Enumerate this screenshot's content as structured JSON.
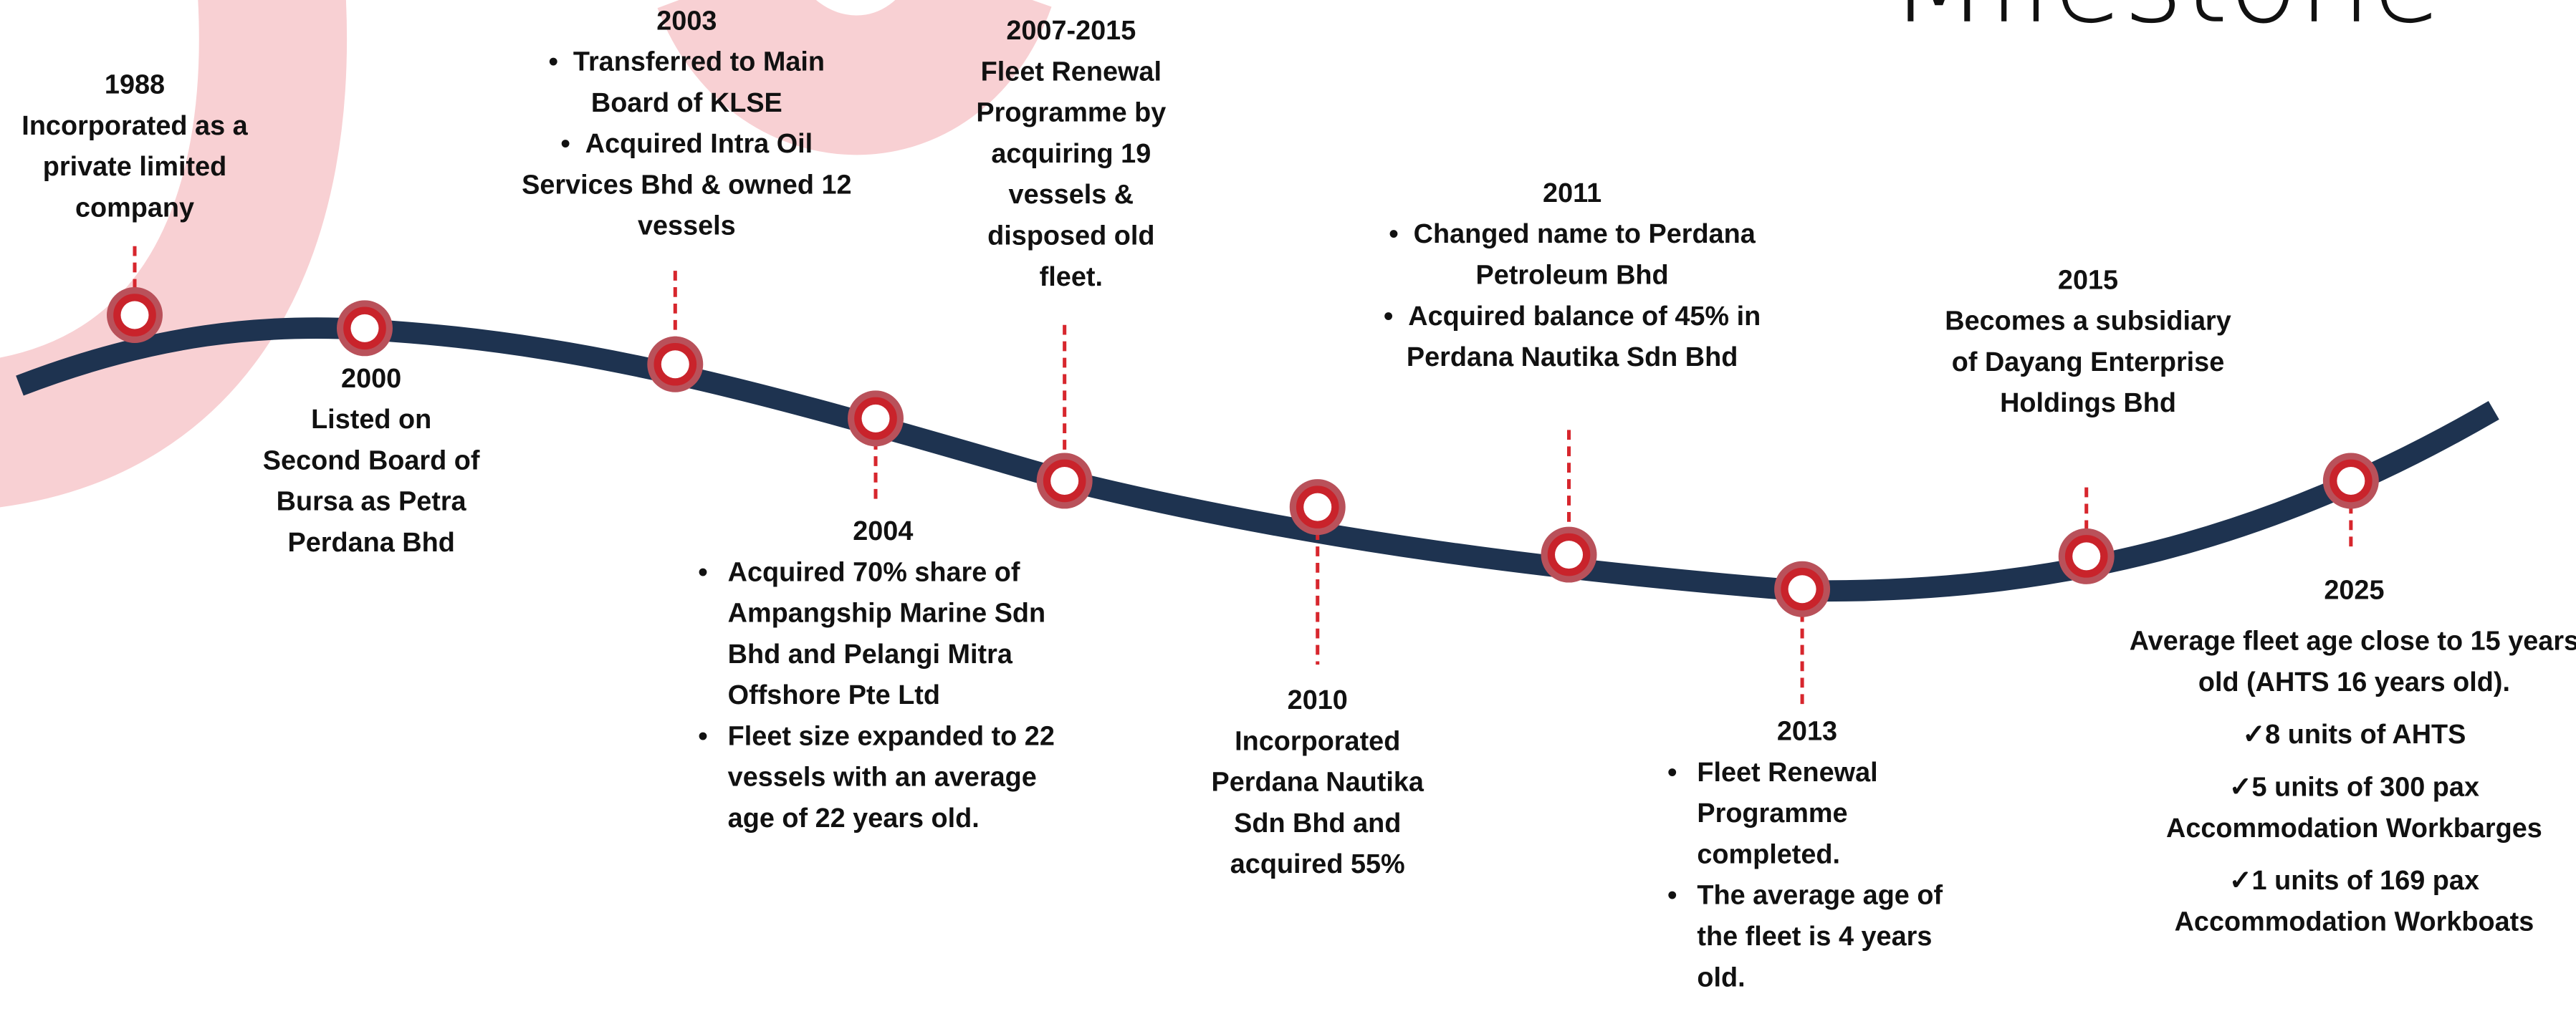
{
  "header": {
    "title": "Milestone"
  },
  "milestones": [
    {
      "year": "1988",
      "text": "Incorporated as a private limited company"
    },
    {
      "year": "2000",
      "text": "Listed on Second Board of Bursa as Petra Perdana Bhd"
    },
    {
      "year": "2003",
      "items": [
        "Transferred to Main Board of KLSE",
        "Acquired Intra Oil Services Bhd & owned 12 vessels"
      ]
    },
    {
      "year": "2004",
      "items": [
        "Acquired 70% share of Ampangship Marine Sdn Bhd and Pelangi Mitra Offshore Pte Ltd",
        "Fleet size expanded to 22 vessels with an average age of 22 years old."
      ]
    },
    {
      "year": "2007-2015",
      "text": "Fleet Renewal Programme by acquiring 19 vessels & disposed old fleet."
    },
    {
      "year": "2010",
      "text": "Incorporated Perdana Nautika Sdn Bhd and acquired 55%"
    },
    {
      "year": "2011",
      "items": [
        "Changed name to Perdana Petroleum Bhd",
        "Acquired balance of 45% in Perdana Nautika Sdn Bhd"
      ]
    },
    {
      "year": "2013",
      "items": [
        "Fleet Renewal Programme completed.",
        "The average age of the fleet is 4 years old."
      ]
    },
    {
      "year": "2015",
      "text": "Becomes a subsidiary of Dayang Enterprise Holdings Bhd"
    },
    {
      "year": "2025",
      "text": "Average fleet age close to 15 years old (AHTS 16 years old).",
      "checks": [
        "8 units of AHTS",
        "5 units of 300 pax Accommodation Workbarges",
        "1 units of 169 pax Accommodation Workboats"
      ]
    }
  ]
}
